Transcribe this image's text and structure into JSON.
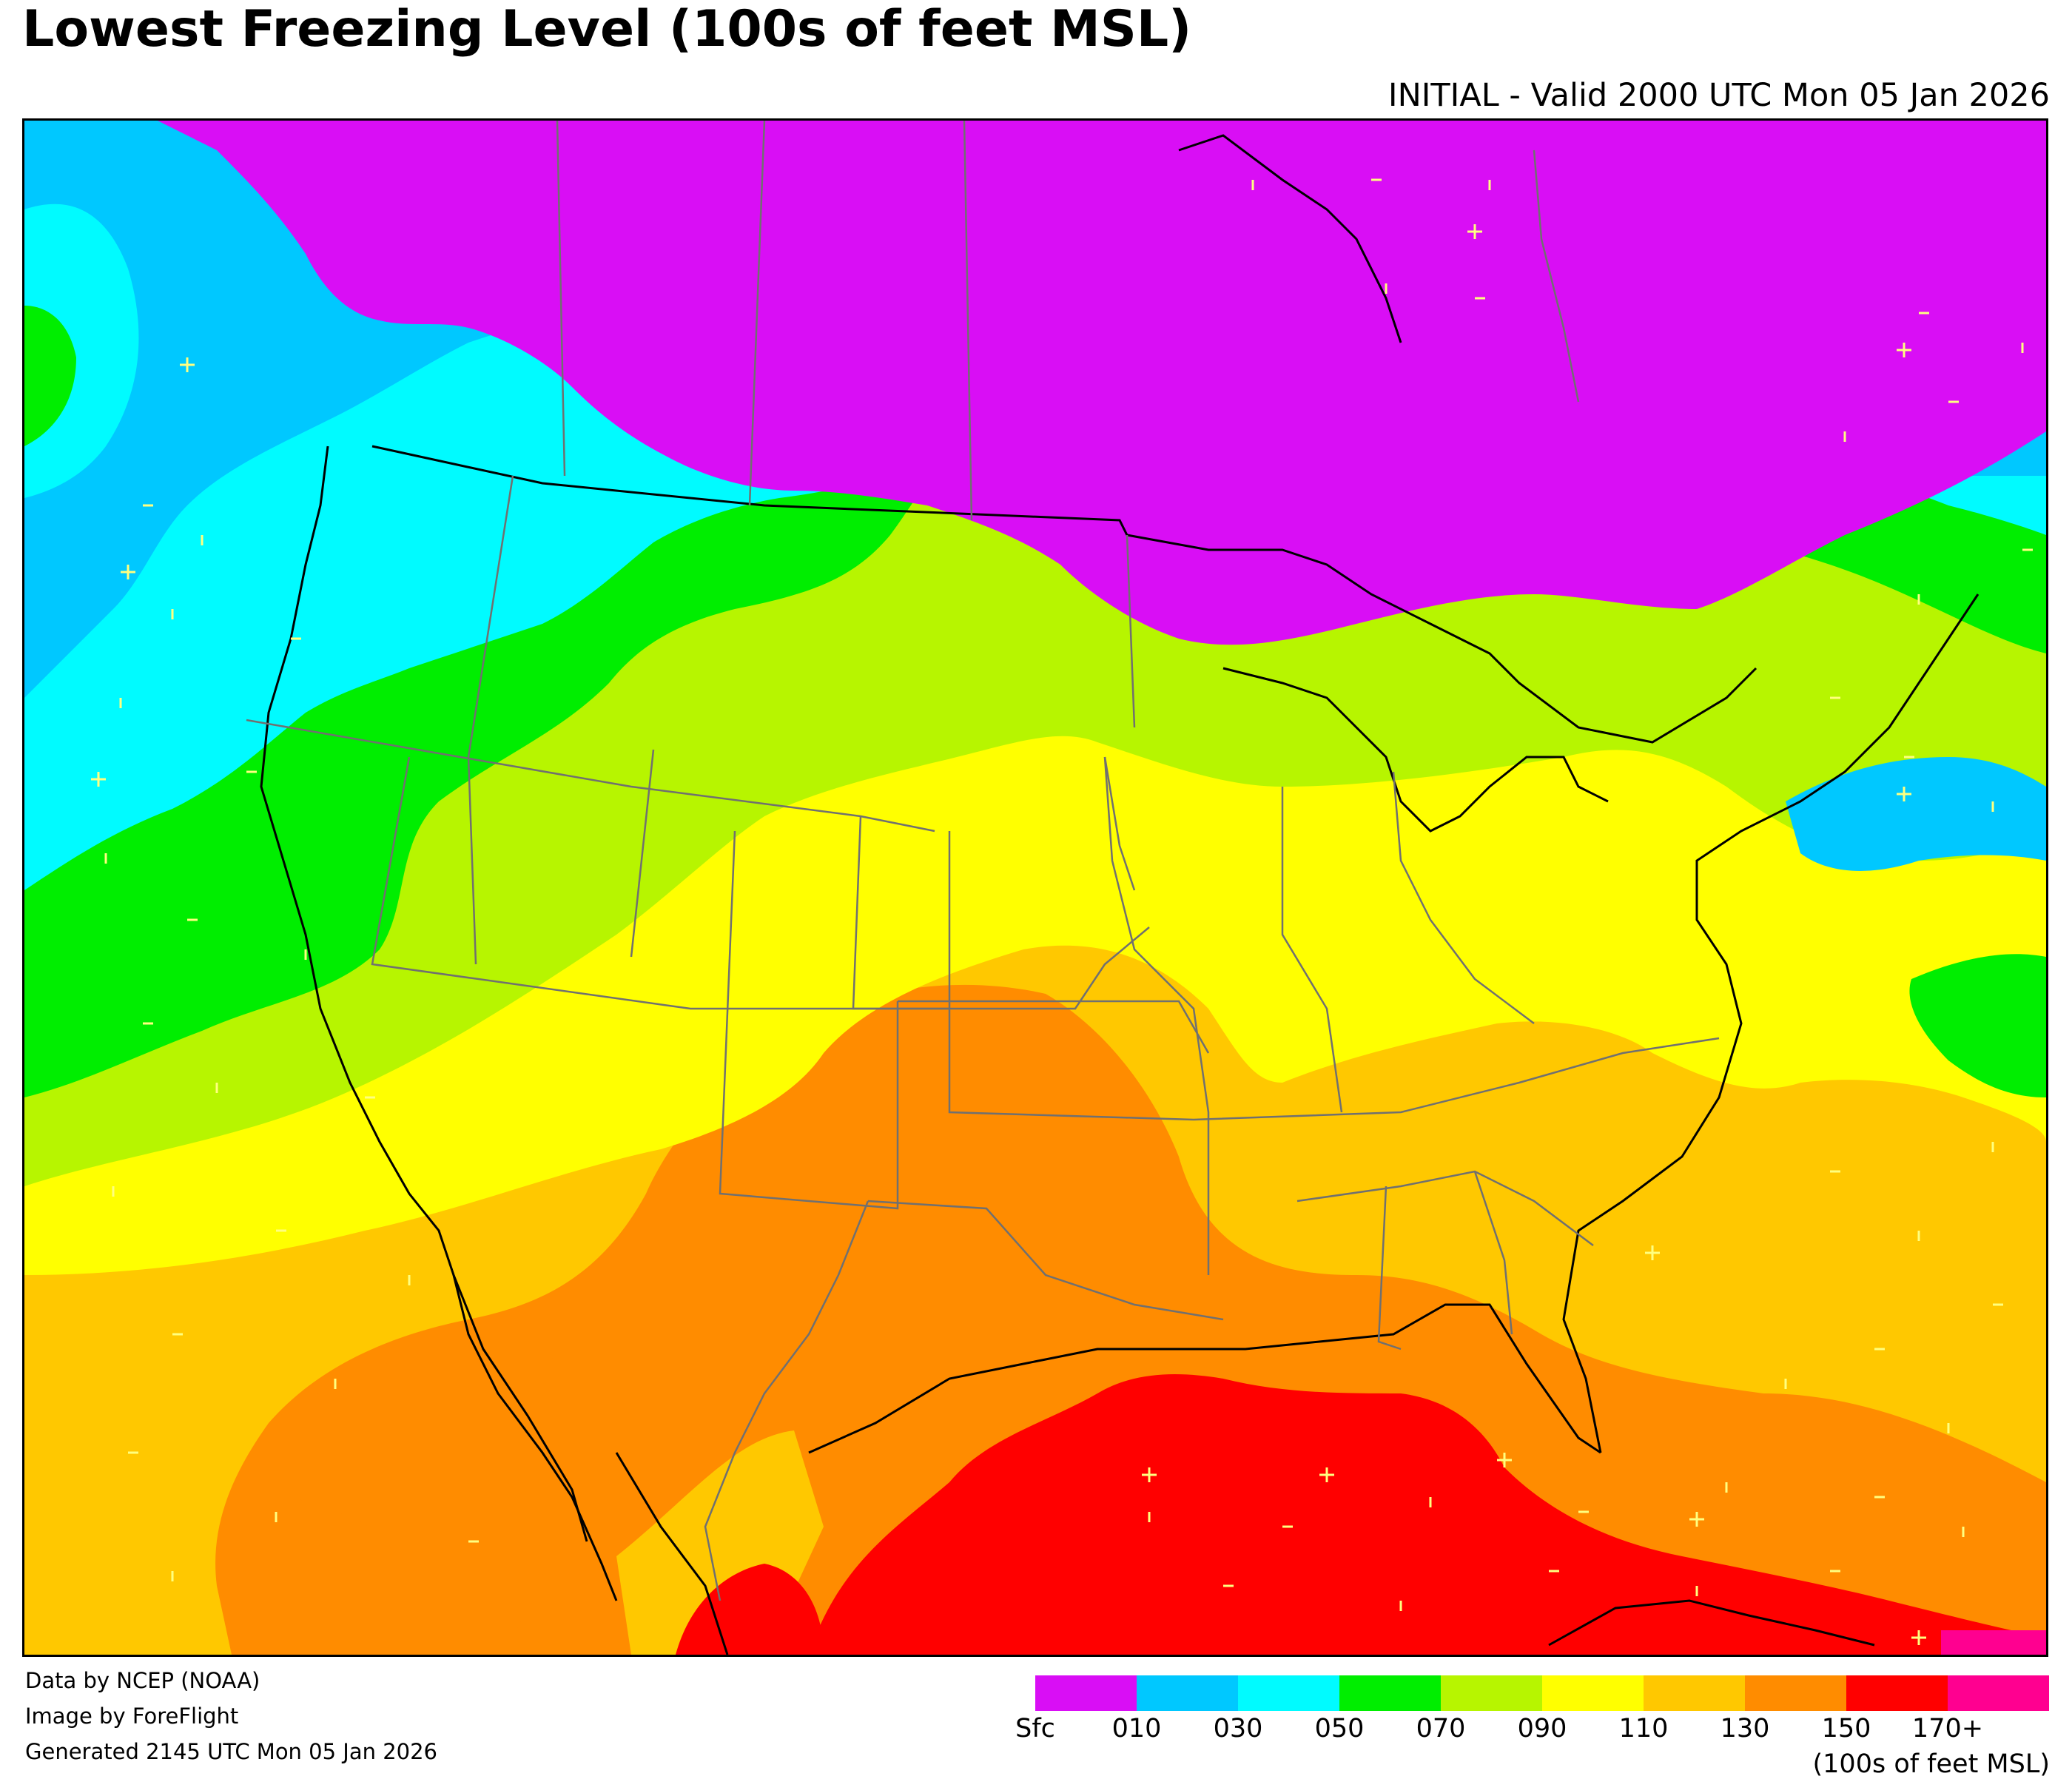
{
  "title": "Lowest Freezing Level (100s of feet MSL)",
  "valid_time": "INITIAL - Valid 2000 UTC Mon 05 Jan 2026",
  "credits": {
    "data": "Data by NCEP (NOAA)",
    "image": "Image by ForeFlight",
    "generated": "Generated 2145 UTC Mon 05 Jan 2026"
  },
  "legend": {
    "units": "(100s of feet MSL)",
    "colors": [
      "#d90ef5",
      "#00c8ff",
      "#00fbff",
      "#00ee00",
      "#b7f500",
      "#ffff00",
      "#ffc800",
      "#ff8c00",
      "#ff0000",
      "#ff0090"
    ],
    "labels": [
      "Sfc",
      "010",
      "030",
      "050",
      "070",
      "090",
      "110",
      "130",
      "150",
      "170+"
    ]
  },
  "colors": {
    "boundary_country": "#000000",
    "boundary_state": "#707070",
    "wind_marks": "#ffff80"
  }
}
